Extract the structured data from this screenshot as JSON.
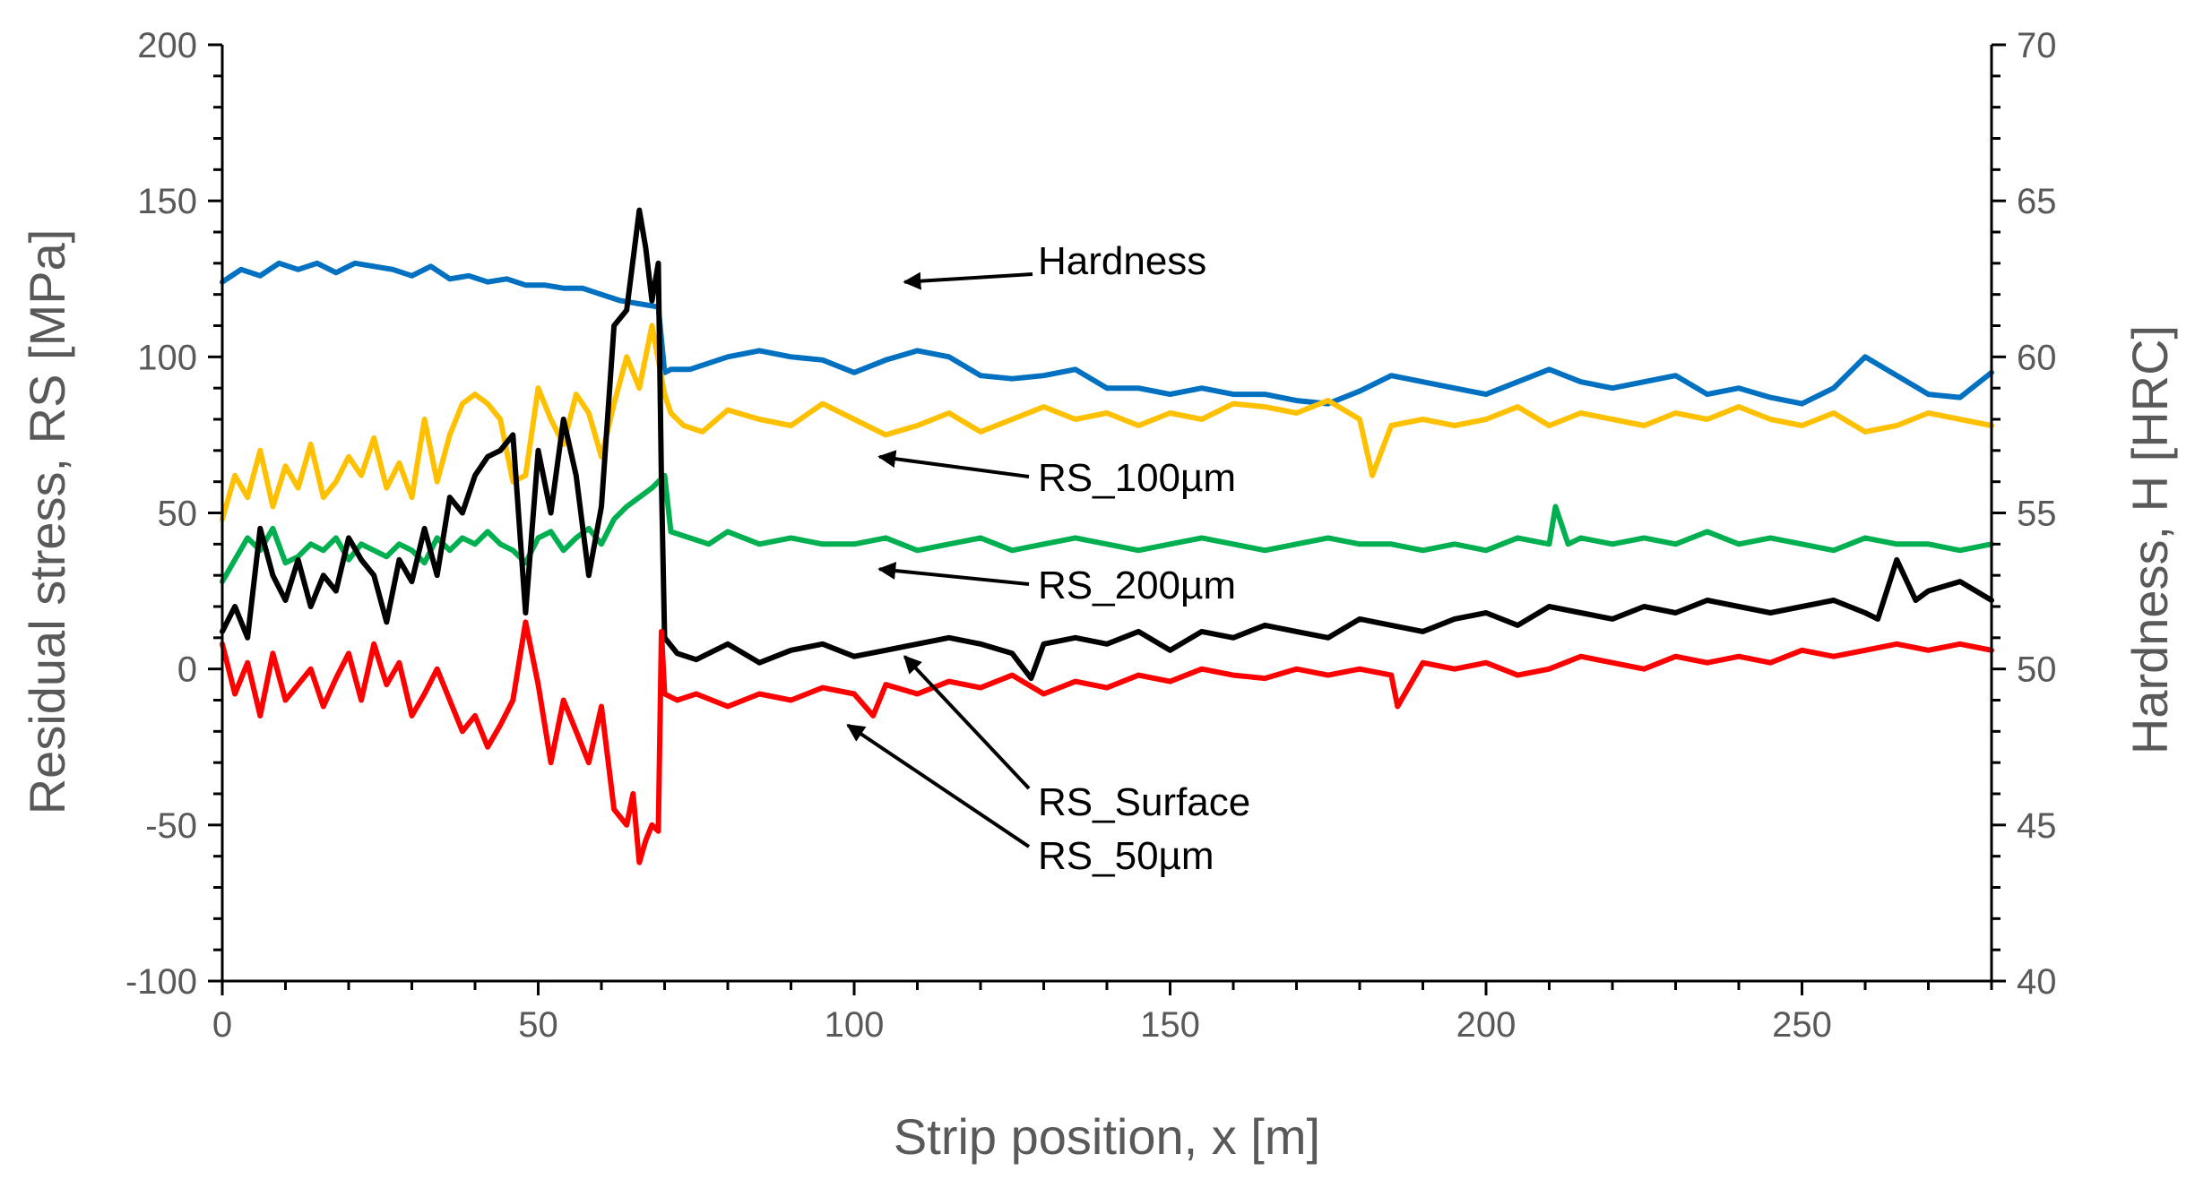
{
  "chart_data": {
    "type": "line",
    "title": "",
    "xlabel": "Strip position, x [m]",
    "ylabel": "Residual stress, RS [MPa]",
    "y2label": "Hardness, H [HRC]",
    "xlim": [
      0,
      280
    ],
    "ylim": [
      -100,
      200
    ],
    "y2lim": [
      40,
      70
    ],
    "x_ticks": [
      0,
      50,
      100,
      150,
      200,
      250
    ],
    "y_ticks": [
      -100,
      -50,
      0,
      50,
      100,
      150,
      200
    ],
    "y2_ticks": [
      40,
      45,
      50,
      55,
      60,
      65,
      70
    ],
    "legend": "none",
    "grid": false,
    "colors": {
      "axis": "#000000",
      "tick_text": "#595959",
      "annotation": "#000000"
    },
    "series": [
      {
        "name": "Hardness",
        "axis": "right",
        "color": "#0070C0",
        "x": [
          0,
          3,
          6,
          9,
          12,
          15,
          18,
          21,
          24,
          27,
          30,
          33,
          36,
          39,
          42,
          45,
          48,
          51,
          54,
          57,
          60,
          63,
          66,
          69,
          70,
          71,
          74,
          77,
          80,
          85,
          90,
          95,
          100,
          105,
          110,
          115,
          120,
          125,
          130,
          135,
          140,
          145,
          150,
          155,
          160,
          165,
          170,
          175,
          180,
          185,
          190,
          195,
          200,
          205,
          210,
          215,
          220,
          225,
          230,
          235,
          240,
          245,
          250,
          255,
          260,
          265,
          270,
          275,
          280
        ],
        "values": [
          62.4,
          62.8,
          62.6,
          63.0,
          62.8,
          63.0,
          62.7,
          63.0,
          62.9,
          62.8,
          62.6,
          62.9,
          62.5,
          62.6,
          62.4,
          62.5,
          62.3,
          62.3,
          62.2,
          62.2,
          62.0,
          61.8,
          61.7,
          61.6,
          59.5,
          59.6,
          59.6,
          59.8,
          60.0,
          60.2,
          60.0,
          59.9,
          59.5,
          59.9,
          60.2,
          60.0,
          59.4,
          59.3,
          59.4,
          59.6,
          59.0,
          59.0,
          58.8,
          59.0,
          58.8,
          58.8,
          58.6,
          58.5,
          58.9,
          59.4,
          59.2,
          59.0,
          58.8,
          59.2,
          59.6,
          59.2,
          59.0,
          59.2,
          59.4,
          58.8,
          59.0,
          58.7,
          58.5,
          59.0,
          60.0,
          59.4,
          58.8,
          58.7,
          59.5
        ]
      },
      {
        "name": "RS_100µm",
        "axis": "left",
        "color": "#FFC000",
        "x": [
          0,
          2,
          4,
          6,
          8,
          10,
          12,
          14,
          16,
          18,
          20,
          22,
          24,
          26,
          28,
          30,
          32,
          34,
          36,
          38,
          40,
          42,
          44,
          46,
          48,
          50,
          52,
          54,
          56,
          58,
          60,
          62,
          64,
          66,
          68,
          70,
          71,
          73,
          76,
          80,
          85,
          90,
          95,
          100,
          105,
          110,
          115,
          120,
          125,
          130,
          135,
          140,
          145,
          150,
          155,
          160,
          165,
          170,
          175,
          180,
          182,
          185,
          190,
          195,
          200,
          205,
          210,
          215,
          220,
          225,
          230,
          235,
          240,
          245,
          250,
          255,
          260,
          265,
          270,
          275,
          280
        ],
        "values": [
          48,
          62,
          55,
          70,
          52,
          65,
          58,
          72,
          55,
          60,
          68,
          62,
          74,
          58,
          66,
          55,
          80,
          60,
          75,
          85,
          88,
          85,
          80,
          60,
          62,
          90,
          80,
          72,
          88,
          82,
          68,
          85,
          100,
          90,
          110,
          88,
          82,
          78,
          76,
          83,
          80,
          78,
          85,
          80,
          75,
          78,
          82,
          76,
          80,
          84,
          80,
          82,
          78,
          82,
          80,
          85,
          84,
          82,
          86,
          80,
          62,
          78,
          80,
          78,
          80,
          84,
          78,
          82,
          80,
          78,
          82,
          80,
          84,
          80,
          78,
          82,
          76,
          78,
          82,
          80,
          78
        ]
      },
      {
        "name": "RS_200µm",
        "axis": "left",
        "color": "#00B050",
        "x": [
          0,
          2,
          4,
          6,
          8,
          10,
          12,
          14,
          16,
          18,
          20,
          22,
          24,
          26,
          28,
          30,
          32,
          34,
          36,
          38,
          40,
          42,
          44,
          46,
          48,
          50,
          52,
          54,
          56,
          58,
          60,
          62,
          64,
          66,
          68,
          70,
          71,
          74,
          77,
          80,
          85,
          90,
          95,
          100,
          105,
          110,
          115,
          120,
          125,
          130,
          135,
          140,
          145,
          150,
          155,
          160,
          165,
          170,
          175,
          180,
          185,
          190,
          195,
          200,
          205,
          210,
          211,
          213,
          215,
          220,
          225,
          230,
          235,
          240,
          245,
          250,
          255,
          260,
          265,
          270,
          275,
          280
        ],
        "values": [
          28,
          35,
          42,
          38,
          45,
          34,
          36,
          40,
          38,
          42,
          35,
          40,
          38,
          36,
          40,
          38,
          34,
          42,
          38,
          42,
          40,
          44,
          40,
          38,
          34,
          42,
          44,
          38,
          42,
          45,
          40,
          48,
          52,
          55,
          58,
          62,
          44,
          42,
          40,
          44,
          40,
          42,
          40,
          40,
          42,
          38,
          40,
          42,
          38,
          40,
          42,
          40,
          38,
          40,
          42,
          40,
          38,
          40,
          42,
          40,
          40,
          38,
          40,
          38,
          42,
          40,
          52,
          40,
          42,
          40,
          42,
          40,
          44,
          40,
          42,
          40,
          38,
          42,
          40,
          40,
          38,
          40
        ]
      },
      {
        "name": "RS_Surface",
        "axis": "left",
        "color": "#000000",
        "x": [
          0,
          2,
          4,
          6,
          8,
          10,
          12,
          14,
          16,
          18,
          20,
          22,
          24,
          26,
          28,
          30,
          32,
          34,
          36,
          38,
          40,
          42,
          44,
          46,
          48,
          50,
          52,
          54,
          56,
          58,
          60,
          62,
          64,
          66,
          67,
          68,
          69,
          69.5,
          70,
          72,
          75,
          80,
          85,
          90,
          95,
          100,
          105,
          110,
          115,
          120,
          125,
          128,
          130,
          135,
          140,
          145,
          150,
          155,
          160,
          165,
          170,
          175,
          180,
          185,
          190,
          195,
          200,
          205,
          210,
          215,
          220,
          225,
          230,
          235,
          240,
          245,
          250,
          255,
          260,
          262,
          265,
          268,
          270,
          275,
          280
        ],
        "values": [
          12,
          20,
          10,
          45,
          30,
          22,
          35,
          20,
          30,
          25,
          42,
          35,
          30,
          15,
          35,
          28,
          45,
          30,
          55,
          50,
          62,
          68,
          70,
          75,
          18,
          70,
          50,
          80,
          62,
          30,
          52,
          110,
          115,
          147,
          135,
          118,
          130,
          60,
          10,
          5,
          3,
          8,
          2,
          6,
          8,
          4,
          6,
          8,
          10,
          8,
          5,
          -3,
          8,
          10,
          8,
          12,
          6,
          12,
          10,
          14,
          12,
          10,
          16,
          14,
          12,
          16,
          18,
          14,
          20,
          18,
          16,
          20,
          18,
          22,
          20,
          18,
          20,
          22,
          18,
          16,
          35,
          22,
          25,
          28,
          22
        ]
      },
      {
        "name": "RS_50µm",
        "axis": "left",
        "color": "#FF0000",
        "x": [
          0,
          2,
          4,
          6,
          8,
          10,
          12,
          14,
          16,
          18,
          20,
          22,
          24,
          26,
          28,
          30,
          32,
          34,
          36,
          38,
          40,
          42,
          44,
          46,
          48,
          50,
          52,
          54,
          56,
          58,
          60,
          62,
          64,
          65,
          66,
          67,
          68,
          69,
          69.5,
          70,
          72,
          75,
          80,
          85,
          90,
          95,
          100,
          103,
          105,
          110,
          115,
          120,
          125,
          130,
          135,
          140,
          145,
          150,
          155,
          160,
          165,
          170,
          175,
          180,
          185,
          186,
          190,
          195,
          200,
          205,
          210,
          215,
          220,
          225,
          230,
          235,
          240,
          245,
          250,
          255,
          260,
          265,
          270,
          275,
          280
        ],
        "values": [
          8,
          -8,
          2,
          -15,
          5,
          -10,
          -5,
          0,
          -12,
          -3,
          5,
          -10,
          8,
          -5,
          2,
          -15,
          -8,
          0,
          -10,
          -20,
          -15,
          -25,
          -18,
          -10,
          15,
          -5,
          -30,
          -10,
          -20,
          -30,
          -12,
          -45,
          -50,
          -40,
          -62,
          -55,
          -50,
          -52,
          12,
          -8,
          -10,
          -8,
          -12,
          -8,
          -10,
          -6,
          -8,
          -15,
          -5,
          -8,
          -4,
          -6,
          -2,
          -8,
          -4,
          -6,
          -2,
          -4,
          0,
          -2,
          -3,
          0,
          -2,
          0,
          -2,
          -12,
          2,
          0,
          2,
          -2,
          0,
          4,
          2,
          0,
          4,
          2,
          4,
          2,
          6,
          4,
          6,
          8,
          6,
          8,
          6
        ]
      }
    ],
    "annotations": [
      {
        "text": "Hardness",
        "target_x": 108,
        "target_y": 124
      },
      {
        "text": "RS_100µm",
        "target_x": 104,
        "target_y": 68
      },
      {
        "text": "RS_200µm",
        "target_x": 104,
        "target_y": 32
      },
      {
        "text": "RS_Surface",
        "target_x": 108,
        "target_y": 4
      },
      {
        "text": "RS_50µm",
        "target_x": 99,
        "target_y": -18
      }
    ]
  }
}
